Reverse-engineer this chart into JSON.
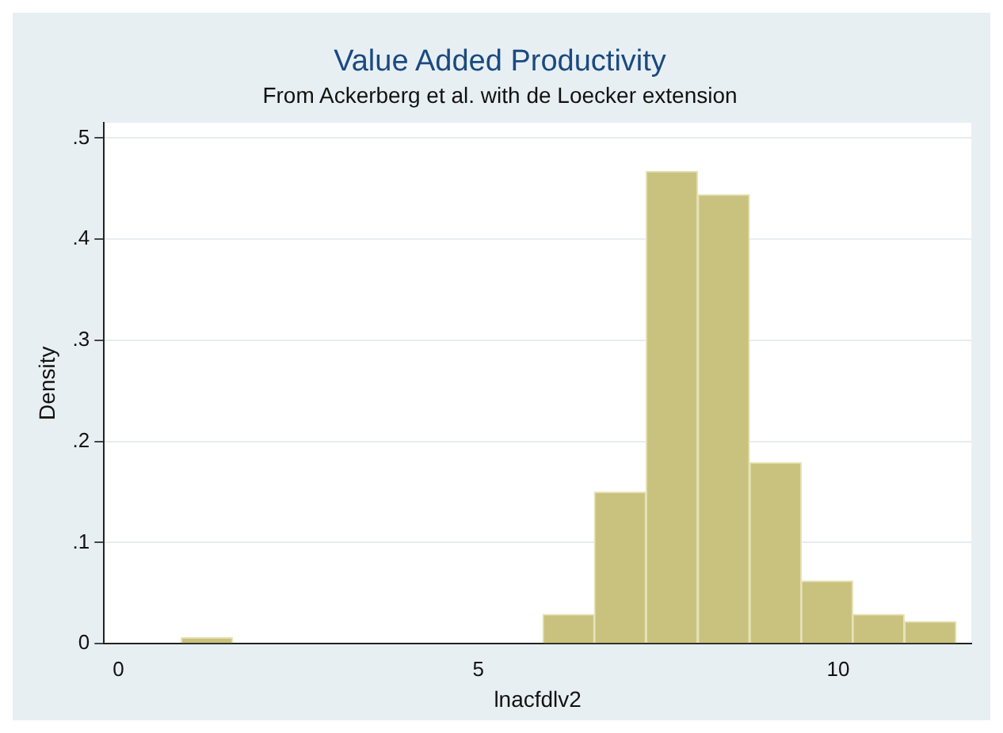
{
  "chart_data": {
    "type": "histogram",
    "title": "Value Added Productivity",
    "subtitle": "From Ackerberg et al. with de Loecker extension",
    "xlabel": "lnacfdlv2",
    "ylabel": "Density",
    "bins": [
      0.87,
      1.59,
      2.31,
      3.02,
      3.74,
      4.46,
      5.18,
      5.9,
      6.61,
      7.33,
      8.05,
      8.77,
      9.49,
      10.2,
      10.92,
      11.64
    ],
    "values": [
      0.006,
      0,
      0,
      0,
      0,
      0,
      0,
      0.029,
      0.15,
      0.467,
      0.444,
      0.179,
      0.062,
      0.029,
      0.022
    ],
    "color": "#c9c27f",
    "xlim": [
      -0.2,
      11.85
    ],
    "xticks": [
      0,
      5,
      10
    ],
    "ylim": [
      0,
      0.515
    ],
    "yticks": [
      0,
      {
        "value": 0.1,
        "label": ".1"
      },
      {
        "value": 0.2,
        "label": ".2"
      },
      {
        "value": 0.3,
        "label": ".3"
      },
      {
        "value": 0.4,
        "label": ".4"
      },
      {
        "value": 0.5,
        "label": ".5"
      }
    ],
    "grid": "y",
    "legend": false
  }
}
